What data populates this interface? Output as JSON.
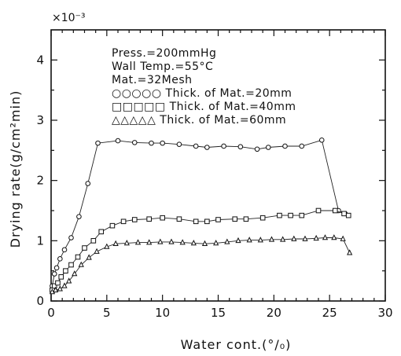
{
  "chart_data": {
    "type": "line",
    "xlabel": "Water cont.(°/₀)",
    "ylabel": "Drying rate(g/cm²min)",
    "y_multiplier": "×10⁻³",
    "xlim": [
      0,
      30
    ],
    "ylim": [
      0,
      4.5
    ],
    "x_ticks": [
      0,
      5,
      10,
      15,
      20,
      25,
      30
    ],
    "y_ticks": [
      0,
      1,
      2,
      3,
      4
    ],
    "grid": false,
    "annotations": [
      "Press.=200mmHg",
      "Wall Temp.=55°C",
      "Mat.=32Mesh"
    ],
    "legend_placement": "upper-left",
    "series": [
      {
        "name": "Thick. of Mat.=20mm",
        "marker": "circle",
        "legend_label": "○○○○○ Thick. of Mat.=20mm",
        "x": [
          0.1,
          0.3,
          0.5,
          0.8,
          1.2,
          1.8,
          2.5,
          3.3,
          4.2,
          6.0,
          7.5,
          9.0,
          10.0,
          11.5,
          13.0,
          14.0,
          15.5,
          17.0,
          18.5,
          19.5,
          21.0,
          22.5,
          24.3,
          25.8,
          26.4
        ],
        "y": [
          0.25,
          0.45,
          0.55,
          0.7,
          0.85,
          1.05,
          1.4,
          1.95,
          2.62,
          2.66,
          2.63,
          2.62,
          2.62,
          2.6,
          2.57,
          2.55,
          2.57,
          2.56,
          2.52,
          2.55,
          2.57,
          2.57,
          2.67,
          1.5,
          1.45
        ]
      },
      {
        "name": "Thick. of Mat.=40mm",
        "marker": "square",
        "legend_label": "□□□□□ Thick. of Mat.=40mm",
        "x": [
          0.1,
          0.3,
          0.6,
          0.9,
          1.3,
          1.8,
          2.4,
          3.0,
          3.8,
          4.5,
          5.5,
          6.5,
          7.5,
          8.8,
          10.0,
          11.5,
          13.0,
          14.0,
          15.0,
          16.5,
          17.5,
          19.0,
          20.5,
          21.5,
          22.5,
          24.0,
          25.5,
          26.3,
          26.7
        ],
        "y": [
          0.18,
          0.25,
          0.3,
          0.4,
          0.5,
          0.6,
          0.73,
          0.88,
          1.0,
          1.15,
          1.25,
          1.32,
          1.35,
          1.36,
          1.38,
          1.36,
          1.32,
          1.32,
          1.35,
          1.36,
          1.36,
          1.38,
          1.42,
          1.42,
          1.42,
          1.5,
          1.5,
          1.45,
          1.42
        ]
      },
      {
        "name": "Thick. of Mat.=60mm",
        "marker": "triangle",
        "legend_label": "△△△△△ Thick. of Mat.=60mm",
        "x": [
          0.1,
          0.4,
          0.8,
          1.2,
          1.6,
          2.1,
          2.7,
          3.4,
          4.1,
          5.0,
          5.8,
          6.8,
          7.8,
          8.8,
          9.8,
          10.8,
          11.8,
          12.8,
          13.8,
          14.8,
          15.8,
          16.8,
          17.8,
          18.8,
          19.8,
          20.8,
          21.8,
          22.8,
          23.8,
          24.6,
          25.4,
          26.2,
          26.8
        ],
        "y": [
          0.15,
          0.18,
          0.2,
          0.25,
          0.33,
          0.45,
          0.6,
          0.72,
          0.82,
          0.9,
          0.95,
          0.96,
          0.97,
          0.97,
          0.98,
          0.98,
          0.97,
          0.96,
          0.95,
          0.96,
          0.98,
          1.0,
          1.01,
          1.01,
          1.02,
          1.02,
          1.03,
          1.03,
          1.04,
          1.05,
          1.05,
          1.03,
          0.8
        ]
      }
    ]
  }
}
